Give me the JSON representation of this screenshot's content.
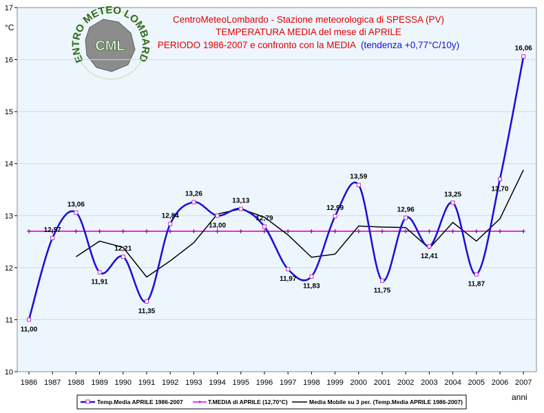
{
  "chart_data": {
    "type": "line",
    "title_lines": [
      "CentroMeteoLombardo - Stazione meteorologica di SPESSA (PV)",
      "TEMPERATURA MEDIA del mese di APRILE",
      "PERIODO 1986-2007 e confronto con la MEDIA",
      "(tendenza +0,77°C/10y)"
    ],
    "ylabel": "°C",
    "xlabel": "anni",
    "ylim": [
      10,
      17
    ],
    "yticks": [
      "10",
      "11",
      "12",
      "13",
      "14",
      "15",
      "16",
      "17"
    ],
    "categories": [
      "1986",
      "1987",
      "1988",
      "1989",
      "1990",
      "1991",
      "1992",
      "1993",
      "1994",
      "1995",
      "1996",
      "1997",
      "1998",
      "1999",
      "2000",
      "2001",
      "2002",
      "2003",
      "2004",
      "2005",
      "2006",
      "2007"
    ],
    "series": [
      {
        "name": "Temp.Media APRILE 1986-2007",
        "color": "#1c10d8",
        "values": [
          11.0,
          12.57,
          13.06,
          11.91,
          12.21,
          11.35,
          12.84,
          13.26,
          13.0,
          13.13,
          12.79,
          11.97,
          11.83,
          12.99,
          13.59,
          11.75,
          12.96,
          12.41,
          13.25,
          11.87,
          13.7,
          16.06
        ],
        "labels": [
          "11,00",
          "12,57",
          "13,06",
          "11,91",
          "12,21",
          "11,35",
          "12,84",
          "13,26",
          "13,00",
          "13,13",
          "12,79",
          "11,97",
          "11,83",
          "12,99",
          "13,59",
          "11,75",
          "12,96",
          "12,41",
          "13,25",
          "11,87",
          "13,70",
          "16,06"
        ]
      },
      {
        "name": "T.MEDIA di APRILE (12,70°C)",
        "color": "#e000e0",
        "values": [
          12.7,
          12.7,
          12.7,
          12.7,
          12.7,
          12.7,
          12.7,
          12.7,
          12.7,
          12.7,
          12.7,
          12.7,
          12.7,
          12.7,
          12.7,
          12.7,
          12.7,
          12.7,
          12.7,
          12.7,
          12.7,
          12.7
        ]
      },
      {
        "name": "Media Mobile su 3 per. (Temp.Media APRILE 1986-2007)",
        "color": "#000000",
        "values": [
          null,
          null,
          12.21,
          12.51,
          12.39,
          11.82,
          12.13,
          12.48,
          13.03,
          13.13,
          12.97,
          12.63,
          12.2,
          12.26,
          12.8,
          12.78,
          12.77,
          12.37,
          12.87,
          12.51,
          12.94,
          13.88
        ]
      }
    ]
  },
  "logo": {
    "ring_text": "CENTRO METEO LOMBARDO",
    "initials": "CML"
  }
}
